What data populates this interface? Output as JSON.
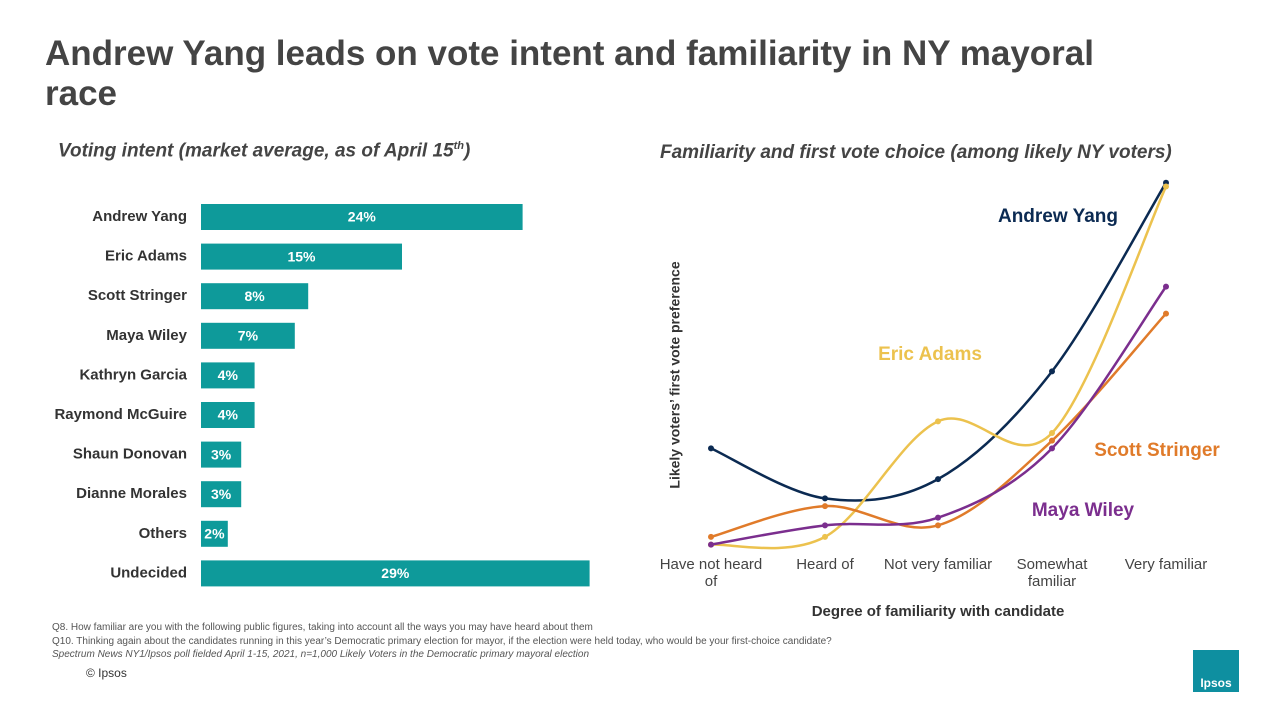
{
  "header": {
    "title": "Andrew Yang leads on vote intent and familiarity in NY mayoral race"
  },
  "chart_data": [
    {
      "type": "bar",
      "orientation": "horizontal",
      "subtitle_parts": [
        "Voting intent (market average, as of April 15",
        "th",
        ")"
      ],
      "categories": [
        "Andrew Yang",
        "Eric Adams",
        "Scott Stringer",
        "Maya Wiley",
        "Kathryn Garcia",
        "Raymond McGuire",
        "Shaun Donovan",
        "Dianne Morales",
        "Others",
        "Undecided"
      ],
      "values": [
        24,
        15,
        8,
        7,
        4,
        4,
        3,
        3,
        2,
        29
      ],
      "value_labels": [
        "24%",
        "15%",
        "8%",
        "7%",
        "4%",
        "4%",
        "3%",
        "3%",
        "2%",
        "29%"
      ],
      "color": "#0e9a9a"
    },
    {
      "type": "line",
      "title": "Familiarity and first vote choice (among likely NY voters)",
      "x_label": "Degree of familiarity with candidate",
      "y_label": "Likely voters’ first vote preference",
      "categories": [
        "Have not heard of",
        "Heard of",
        "Not very familiar",
        "Somewhat familiar",
        "Very familiar"
      ],
      "ylim": [
        0,
        100
      ],
      "series": [
        {
          "name": "Andrew Yang",
          "color": "#0b2a52",
          "values": [
            29,
            16,
            21,
            49,
            98
          ]
        },
        {
          "name": "Eric Adams",
          "color": "#ecc24e",
          "values": [
            4,
            6,
            36,
            33,
            97
          ]
        },
        {
          "name": "Scott Stringer",
          "color": "#e07b2a",
          "values": [
            6,
            14,
            9,
            31,
            64
          ]
        },
        {
          "name": "Maya Wiley",
          "color": "#7b2e8e",
          "values": [
            4,
            9,
            11,
            29,
            71
          ]
        }
      ]
    }
  ],
  "footnotes": [
    "Q8. How familiar are you with the following public figures, taking into account all the ways you may have heard about them",
    "Q10. Thinking again about the candidates running in this year’s Democratic primary election for mayor, if the election were held today, who would be your first-choice candidate?",
    "Spectrum News NY1/Ipsos poll fielded April 1-15, 2021, n=1,000 Likely Voters in the Democratic primary mayoral election"
  ],
  "copyright": "© Ipsos",
  "logo": "Ipsos"
}
